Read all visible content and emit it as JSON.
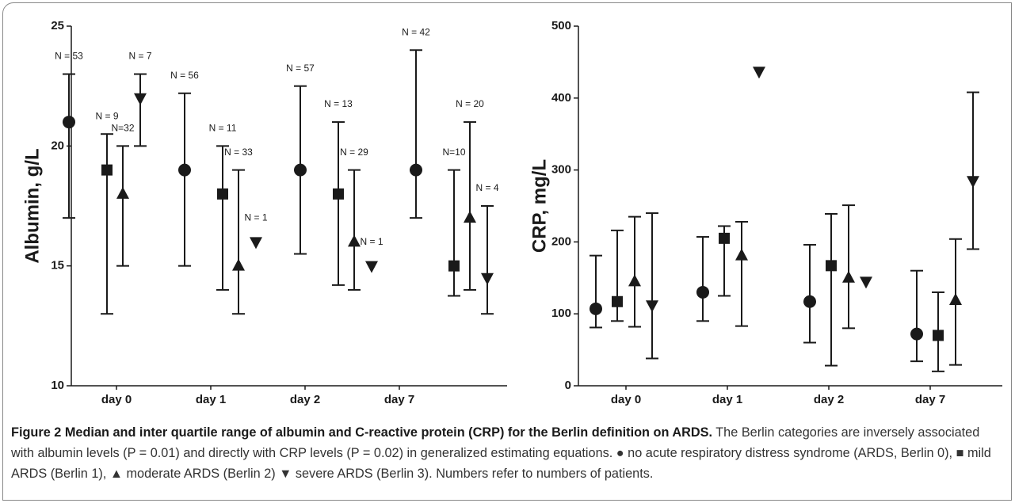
{
  "chart_data": [
    {
      "type": "errorbar",
      "ylabel": "Albumin, g/L",
      "categories": [
        "day 0",
        "day 1",
        "day 2",
        "day 7"
      ],
      "ylim": [
        10,
        25
      ],
      "yticks": [
        10,
        15,
        20,
        25
      ],
      "series": [
        {
          "marker": "circle",
          "color": "#1a1a1a",
          "values": [
            21,
            19,
            19,
            19
          ],
          "lower": [
            17,
            15,
            15.5,
            17
          ],
          "upper": [
            23,
            22.2,
            22.5,
            24
          ],
          "n_labels": [
            "N = 53",
            "N = 56",
            "N = 57",
            "N = 42"
          ]
        },
        {
          "marker": "square",
          "color": "#1a1a1a",
          "values": [
            19,
            18,
            18,
            15
          ],
          "lower": [
            13,
            14,
            14.2,
            13.75
          ],
          "upper": [
            20.5,
            20,
            21,
            19
          ],
          "n_labels": [
            "N = 9",
            "N = 11",
            "N = 13",
            "N=10"
          ]
        },
        {
          "marker": "triangle-up",
          "color": "#1a1a1a",
          "values": [
            18,
            15,
            16,
            17
          ],
          "lower": [
            15,
            13,
            14,
            14
          ],
          "upper": [
            20,
            19,
            19,
            21
          ],
          "n_labels": [
            "N=32",
            "N = 33",
            "N = 29",
            "N = 20"
          ]
        },
        {
          "marker": "triangle-down",
          "color": "#1a1a1a",
          "values": [
            22,
            16,
            15,
            14.5
          ],
          "lower": [
            20,
            null,
            null,
            13
          ],
          "upper": [
            23,
            null,
            null,
            17.5
          ],
          "n_labels": [
            "N = 7",
            "N = 1",
            "N = 1",
            "N = 4"
          ]
        }
      ]
    },
    {
      "type": "errorbar",
      "ylabel": "CRP, mg/L",
      "categories": [
        "day 0",
        "day 1",
        "day 2",
        "day 7"
      ],
      "ylim": [
        0,
        500
      ],
      "yticks": [
        0,
        100,
        200,
        300,
        400,
        500
      ],
      "series": [
        {
          "marker": "circle",
          "color": "#1a1a1a",
          "values": [
            107,
            130,
            117,
            72
          ],
          "lower": [
            81,
            90,
            60,
            34
          ],
          "upper": [
            181,
            207,
            196,
            160
          ]
        },
        {
          "marker": "square",
          "color": "#1a1a1a",
          "values": [
            117,
            205,
            167,
            70
          ],
          "lower": [
            90,
            125,
            28,
            20
          ],
          "upper": [
            216,
            222,
            239,
            130
          ]
        },
        {
          "marker": "triangle-up",
          "color": "#1a1a1a",
          "values": [
            145,
            181,
            150,
            119
          ],
          "lower": [
            82,
            83,
            80,
            29
          ],
          "upper": [
            235,
            228,
            251,
            204
          ]
        },
        {
          "marker": "triangle-down",
          "color": "#1a1a1a",
          "values": [
            112,
            437,
            145,
            285
          ],
          "lower": [
            38,
            null,
            null,
            190
          ],
          "upper": [
            240,
            null,
            null,
            408
          ]
        }
      ]
    }
  ],
  "caption": {
    "title": "Figure 2 Median and inter quartile range of albumin and C-reactive protein (CRP) for the Berlin definition on ARDS.",
    "text": "The Berlin categories are inversely associated with albumin levels (P = 0.01) and directly with CRP levels (P = 0.02) in generalized estimating equations. ● no acute respiratory distress syndrome (ARDS, Berlin 0), ■ mild ARDS (Berlin 1), ▲ moderate ARDS (Berlin 2) ▼ severe ARDS (Berlin 3). Numbers refer to numbers of patients."
  }
}
